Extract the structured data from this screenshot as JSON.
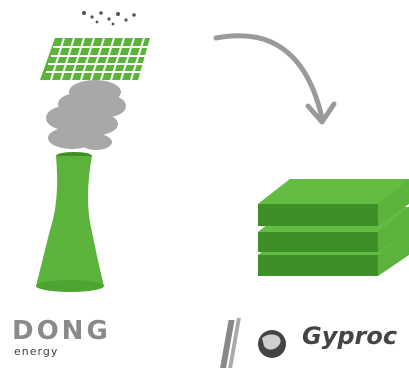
{
  "logos": {
    "dong": {
      "name": "DONG",
      "sub": "energy"
    },
    "gyproc": {
      "name": "Gyproc"
    }
  },
  "colors": {
    "green_main": "#5cb33c",
    "green_dark": "#3e8f25",
    "smoke": "#a8a8a8",
    "arrow": "#9a9a9a",
    "logo_gray": "#8a8a8a"
  },
  "icons": [
    "power-plant-chimney-icon",
    "filter-grid-icon",
    "smoke-icon",
    "curved-arrow-icon",
    "gypsum-boards-icon",
    "gyproc-globe-icon"
  ]
}
